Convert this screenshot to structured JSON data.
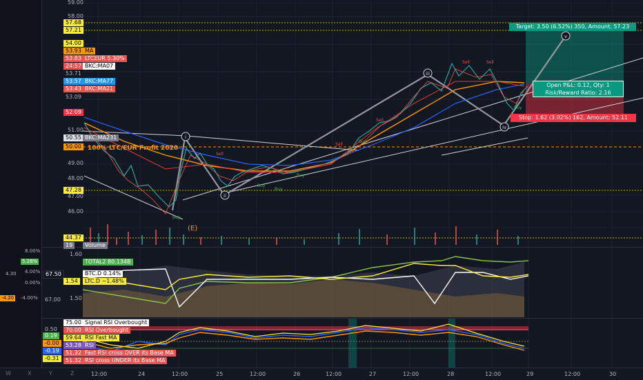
{
  "left_stats": {
    "row1": "4.30",
    "row2": "-4.20",
    "s1": "8.00%",
    "s2": "5.28%",
    "s3": "4.00%",
    "s4": "0.00%",
    "s5": "-4.00%",
    "s6": "67.50",
    "s7": "67.00"
  },
  "price_axis": {
    "ticks": [
      "59.00",
      "58.00",
      "57.68",
      "57.21",
      "54.00",
      "53.93",
      "53.83",
      "24:57",
      "53.71",
      "53.57",
      "53.43",
      "53.09",
      "52.09",
      "51.00",
      "50.55",
      "50.00",
      "49.00",
      "48.00",
      "47.28",
      "47.00",
      "46.00",
      "44.37"
    ],
    "tag_57_68": "57.68",
    "tag_57_21": "57.21",
    "tag_54_00": "54.00",
    "tag_53_93": "53.93",
    "label_ma": "MA",
    "tag_53_83": "53.83",
    "label_ltceur": "LTCEUR 5.30%",
    "tag_24_57": "24:57",
    "label_bkcma07": "BKC:MA07",
    "tag_53_71": "53.71",
    "tag_53_57": "53.57",
    "label_bkcma77": "BKC:MA77",
    "tag_53_43": "53.43",
    "label_bkcma21": "BKC:MA21",
    "tag_53_09": "53.09",
    "tag_52_09": "52.09",
    "tag_50_55": "50.55",
    "label_bkcma231": "BKC:MA231",
    "tag_50_00": "50.00",
    "tag_47_28": "47.28",
    "tag_44_37": "44.37",
    "volume_label": "Volume",
    "volume_val": "19"
  },
  "pane2": {
    "t1": "1.60",
    "t2": "1.50",
    "total2_val": "5.28%",
    "total2_label": "TOTAL2 80.134B",
    "btc_val": "67.50",
    "btc_label": "BTC.D 0.14%",
    "ltc_val": "1.54",
    "ltc_label": "LTC.D −1.48%"
  },
  "pane3": {
    "t1": "0.50",
    "t2": "0.19",
    "t3": "-0.00",
    "t4": "-0.19",
    "t5": "-0.31",
    "r1v": "75.00",
    "r1": "Signal RSI Overbought",
    "r2v": "70.00",
    "r2": "RSI Overbought",
    "r3v": "59.64",
    "r3": "RSI Fast MA",
    "r4v": "53.28",
    "r4": "RSI",
    "r5v": "51.32",
    "r5": "Fast RSI cross OVER its Base MA",
    "r6v": "51.32",
    "r6": "RSI cross UNDER its Base MA"
  },
  "overlay": {
    "target": "Target: 3.50 (6.52%) 350, Amount: 57.23",
    "stop": "Stop: 1.62 (3.02%) 162, Amount: 52.11",
    "pnl_line1": "Open P&L: 0.12, Qty: 1",
    "pnl_line2": "Risk/Reward Ratio: 2.16",
    "profit_text": "100% LTC/EUR Profit 2020",
    "wave_i": "i",
    "wave_ii": "ii",
    "wave_iii": "iii",
    "wave_iv": "iv",
    "wave_v": "v",
    "wave_e": "(E)",
    "buy": "Buy",
    "sell": "Sell"
  },
  "time_axis": [
    "12:00",
    "24",
    "12:00",
    "25",
    "12:00",
    "26",
    "12:00",
    "27",
    "12:00",
    "28",
    "12:00",
    "29",
    "12:00",
    "30"
  ],
  "bottom_tools": [
    "W",
    "X",
    "Y",
    "Z"
  ],
  "colors": {
    "bg": "#131722",
    "up": "#26a69a",
    "down": "#ef5350",
    "ma_orange": "#ff9800",
    "ma_blue": "#2962ff",
    "ma_red": "#e53935",
    "yellow": "#ffeb3b",
    "green_zone": "#089981",
    "red_zone": "#f23645"
  }
}
